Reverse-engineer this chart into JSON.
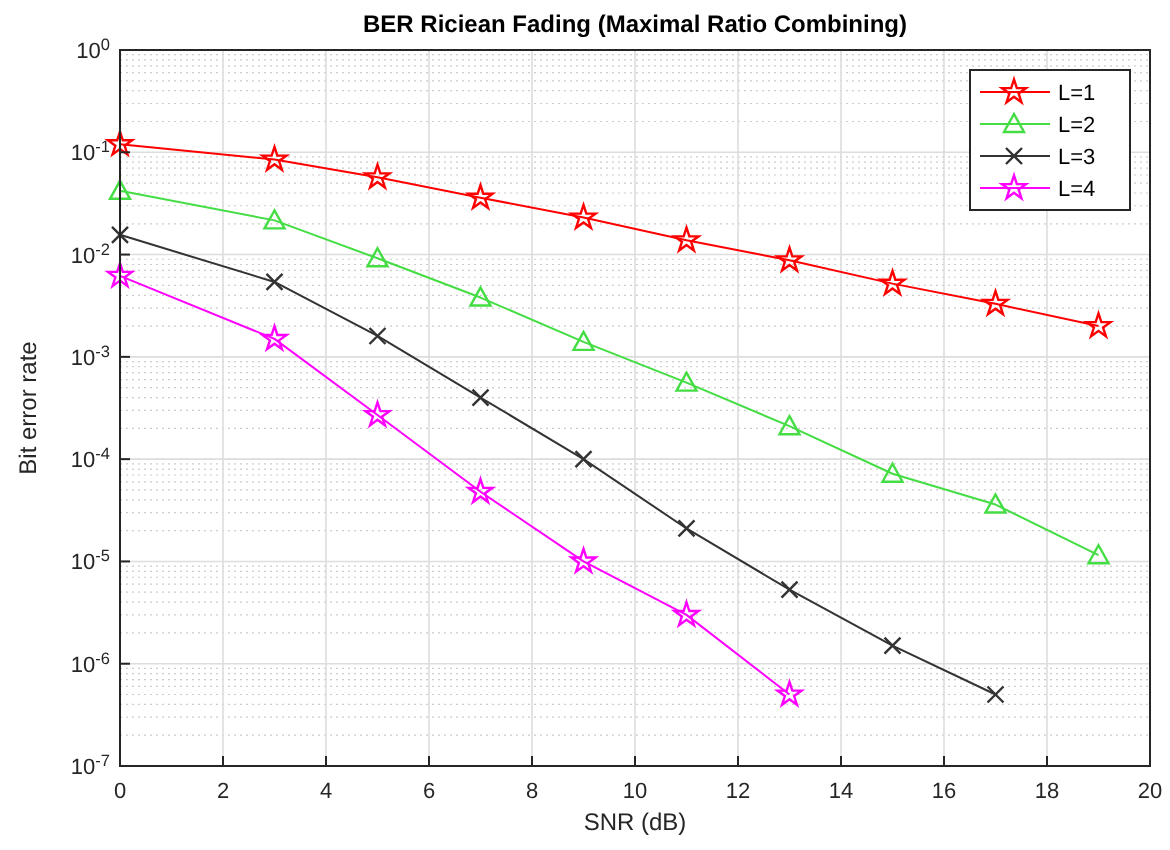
{
  "chart_data": {
    "type": "line",
    "title": "BER Riciean Fading (Maximal Ratio Combining)",
    "xlabel": "SNR (dB)",
    "ylabel": "Bit error rate",
    "x": [
      0,
      3,
      5,
      7,
      9,
      11,
      13,
      15,
      17,
      19
    ],
    "series": [
      {
        "name": "L=1",
        "color": "#ff0000",
        "marker": "star",
        "values": [
          0.12,
          0.085,
          0.057,
          0.036,
          0.023,
          0.0138,
          0.0088,
          0.0052,
          0.0033,
          0.002
        ]
      },
      {
        "name": "L=2",
        "color": "#44dd44",
        "marker": "triangle",
        "values": [
          0.042,
          0.0216,
          0.0092,
          0.0038,
          0.0014,
          0.00056,
          0.00021,
          7.2e-05,
          3.6e-05,
          1.15e-05
        ]
      },
      {
        "name": "L=3",
        "color": "#333333",
        "marker": "cross",
        "values": [
          0.0156,
          0.0054,
          0.0016,
          0.0004,
          0.0001,
          2.1e-05,
          5.3e-06,
          1.5e-06,
          5e-07,
          null
        ]
      },
      {
        "name": "L=4",
        "color": "#ff00ff",
        "marker": "star",
        "values": [
          0.0062,
          0.0015,
          0.00027,
          4.8e-05,
          1e-05,
          3e-06,
          5e-07,
          null,
          null,
          null
        ]
      }
    ],
    "log": "y",
    "xlim": [
      0,
      20
    ],
    "xticks": [
      0,
      2,
      4,
      6,
      8,
      10,
      12,
      14,
      16,
      18,
      20
    ],
    "ylim": [
      1e-07,
      1
    ],
    "yticks": [
      {
        "value": 1e-07,
        "label": "10$^{-7}$"
      },
      {
        "value": 1e-06,
        "label": "10$^{-6}$"
      },
      {
        "value": 1e-05,
        "label": "10$^{-5}$"
      },
      {
        "value": 0.0001,
        "label": "10$^{-4}$"
      },
      {
        "value": 0.001,
        "label": "10$^{-3}$"
      },
      {
        "value": 0.01,
        "label": "10$^{-2}$"
      },
      {
        "value": 0.1,
        "label": "10$^{-1}$"
      },
      {
        "value": 1,
        "label": "10$^{0}$"
      }
    ],
    "grid": true,
    "legend": "top right",
    "line_style": "solid"
  }
}
